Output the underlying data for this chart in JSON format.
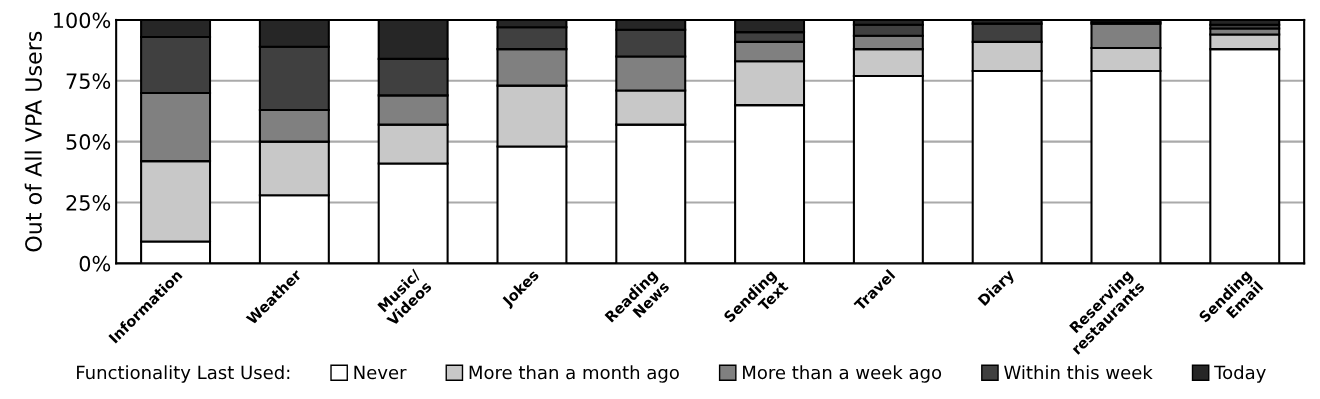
{
  "chart_data": {
    "type": "bar",
    "stacked": true,
    "ylabel": "Out of All VPA Users",
    "legend_title": "Functionality Last Used:",
    "legend": "bottom",
    "grid": "y",
    "categories": [
      "Information",
      "Weather",
      "Music/\nVideos",
      "Jokes",
      "Reading\nNews",
      "Sending\nText",
      "Travel",
      "Diary",
      "Reserving\nrestaurants",
      "Sending\nEmail"
    ],
    "ylim": [
      0,
      100
    ],
    "yticks": [
      {
        "value": 0,
        "label": "0%"
      },
      {
        "value": 25,
        "label": "25%"
      },
      {
        "value": 50,
        "label": "50%"
      },
      {
        "value": 75,
        "label": "75%"
      },
      {
        "value": 100,
        "label": "100%"
      }
    ],
    "series": [
      {
        "name": "Never",
        "color": "#ffffff",
        "values": [
          9,
          28,
          41,
          48,
          57,
          65,
          77,
          79,
          79,
          88
        ]
      },
      {
        "name": "More than a month ago",
        "color": "#c8c8c8",
        "values": [
          33,
          22,
          16,
          25,
          14,
          18,
          11,
          12,
          9.5,
          6
        ]
      },
      {
        "name": "More than a week ago",
        "color": "#808080",
        "values": [
          28,
          13,
          12,
          15,
          14,
          8,
          5.5,
          null,
          10,
          2.5
        ]
      },
      {
        "name": "Within this week",
        "color": "#404040",
        "values": [
          23,
          26,
          15,
          9,
          11,
          4,
          4.5,
          7.5,
          0.5,
          1.5
        ]
      },
      {
        "name": "Today",
        "color": "#262626",
        "values": [
          7,
          11,
          16,
          3,
          4,
          5,
          2,
          1.5,
          1,
          2
        ]
      }
    ]
  }
}
